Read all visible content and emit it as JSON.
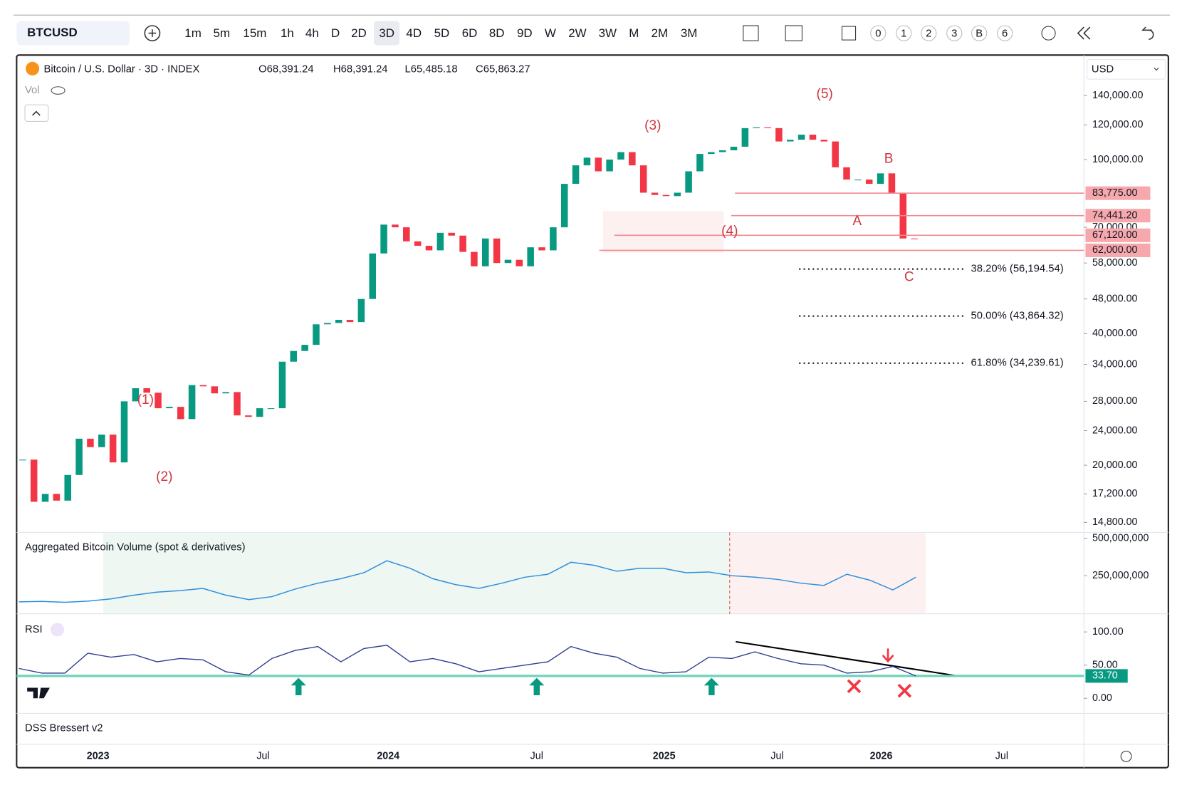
{
  "toolbar": {
    "symbol": "BTCUSD",
    "intervals": [
      "1m",
      "5m",
      "15m",
      "1h",
      "4h",
      "D",
      "2D",
      "3D",
      "4D",
      "5D",
      "6D",
      "8D",
      "9D",
      "W",
      "2W",
      "3W",
      "M",
      "2M",
      "3M"
    ],
    "active": 7,
    "counters": [
      "0",
      "1",
      "2",
      "3",
      "B",
      "6"
    ]
  },
  "legend": {
    "title": "Bitcoin / U.S. Dollar · 3D · INDEX",
    "ohlc": [
      "O68,391.24",
      "H68,391.24",
      "L65,485.18",
      "C65,863.27"
    ],
    "vol": "Vol"
  },
  "currency": "USD",
  "price": {
    "scale": "log",
    "ylim": [
      14100,
      172000
    ],
    "yticks": [
      {
        "value": 140000,
        "label": "140,000.00"
      },
      {
        "value": 120000,
        "label": "120,000.00"
      },
      {
        "value": 100000,
        "label": "100,000.00"
      },
      {
        "value": 70000,
        "label": "70,000.00"
      },
      {
        "value": 58000,
        "label": "58,000.00"
      },
      {
        "value": 48000,
        "label": "48,000.00"
      },
      {
        "value": 40000,
        "label": "40,000.00"
      },
      {
        "value": 34000,
        "label": "34,000.00"
      },
      {
        "value": 28000,
        "label": "28,000.00"
      },
      {
        "value": 24000,
        "label": "24,000.00"
      },
      {
        "value": 20000,
        "label": "20,000.00"
      },
      {
        "value": 17200,
        "label": "17,200.00"
      },
      {
        "value": 14800,
        "label": "14,800.00"
      }
    ],
    "closes": [
      20600,
      16500,
      17200,
      16600,
      19000,
      23000,
      22000,
      23500,
      20300,
      28000,
      30000,
      29300,
      27000,
      27200,
      25500,
      30500,
      30300,
      29200,
      29400,
      26000,
      25800,
      27000,
      27000,
      34500,
      36500,
      37700,
      42000,
      42300,
      43000,
      42500,
      48000,
      61000,
      71000,
      70000,
      65000,
      63500,
      62000,
      68000,
      67000,
      61500,
      57000,
      66000,
      58000,
      59000,
      57000,
      63000,
      62000,
      70000,
      88000,
      97000,
      101000,
      94000,
      100000,
      104000,
      97000,
      84000,
      83000,
      82500,
      84000,
      94000,
      103000,
      104000,
      105000,
      107000,
      118000,
      118500,
      118000,
      110000,
      111000,
      114000,
      111000,
      110000,
      96000,
      90000,
      90000,
      88000,
      93000,
      84000,
      66000,
      65863
    ]
  },
  "levels": [
    {
      "value": 83775,
      "label": "83,775.00"
    },
    {
      "value": 74441.2,
      "label": "74,441.20"
    },
    {
      "value": 67120,
      "label": "67,120.00"
    },
    {
      "value": 62000,
      "label": "62,000.00"
    }
  ],
  "fib": [
    {
      "value": 56194.54,
      "label": "38.20% (56,194.54)"
    },
    {
      "value": 43864.32,
      "label": "50.00% (43,864.32)"
    },
    {
      "value": 34239.61,
      "label": "61.80% (34,239.61)"
    }
  ],
  "waves": [
    "(1)",
    "(2)",
    "(3)",
    "(4)",
    "(5)",
    "A",
    "B",
    "C"
  ],
  "volume": {
    "title": "Aggregated Bitcoin Volume (spot & derivatives)",
    "ylim": [
      0,
      540000000
    ],
    "yticks": [
      {
        "value": 500000000,
        "label": "500,000,000"
      },
      {
        "value": 250000000,
        "label": "250,000,000"
      }
    ],
    "values": [
      75000000,
      78000000,
      72000000,
      80000000,
      95000000,
      120000000,
      140000000,
      150000000,
      165000000,
      120000000,
      90000000,
      110000000,
      160000000,
      200000000,
      230000000,
      270000000,
      350000000,
      300000000,
      230000000,
      190000000,
      165000000,
      200000000,
      240000000,
      260000000,
      340000000,
      320000000,
      280000000,
      300000000,
      300000000,
      270000000,
      275000000,
      250000000,
      240000000,
      225000000,
      200000000,
      185000000,
      260000000,
      220000000,
      155000000,
      240000000
    ]
  },
  "rsi": {
    "title": "RSI",
    "ylim": [
      -22.7,
      127.3
    ],
    "yticks": [
      {
        "value": 100,
        "label": "100.00"
      },
      {
        "value": 50,
        "label": "50.00"
      },
      {
        "value": 0,
        "label": "0.00"
      }
    ],
    "current": {
      "value": 33.7,
      "label": "33.70"
    },
    "values": [
      45,
      38,
      38,
      68,
      62,
      66,
      55,
      60,
      58,
      40,
      35,
      60,
      72,
      78,
      55,
      75,
      80,
      55,
      60,
      52,
      40,
      45,
      50,
      55,
      78,
      68,
      62,
      45,
      38,
      40,
      62,
      60,
      70,
      60,
      52,
      50,
      38,
      40,
      48,
      33.7
    ]
  },
  "dss": "DSS Bressert v2",
  "xaxis": [
    "2023",
    "Jul",
    "2024",
    "Jul",
    "2025",
    "Jul",
    "2026",
    "Jul"
  ]
}
